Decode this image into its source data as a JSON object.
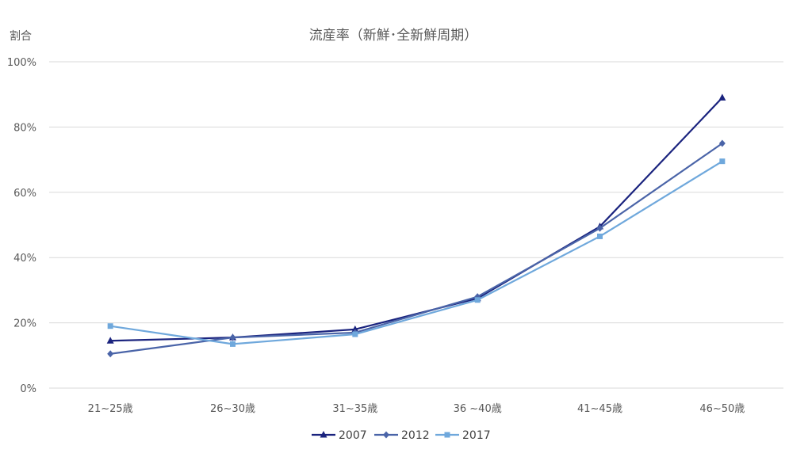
{
  "chart_data": {
    "type": "line",
    "title": "流産率（新鮮･全新鮮周期）",
    "ylabel": "割合",
    "xlabel": "",
    "ylim": [
      0,
      100
    ],
    "yticks": [
      "0%",
      "20%",
      "40%",
      "60%",
      "80%",
      "100%"
    ],
    "categories": [
      "21~25歳",
      "26~30歳",
      "31~35歳",
      "36 ~40歳",
      "41~45歳",
      "46~50歳"
    ],
    "grid": true,
    "legend_position": "bottom",
    "series": [
      {
        "name": "2007",
        "color": "#1a237e",
        "marker": "triangle",
        "values": [
          14.5,
          15.5,
          18.0,
          27.5,
          49.5,
          89.0
        ]
      },
      {
        "name": "2012",
        "color": "#4a64a8",
        "marker": "diamond",
        "values": [
          10.5,
          15.5,
          17.0,
          28.0,
          49.0,
          75.0
        ]
      },
      {
        "name": "2017",
        "color": "#6fa8dc",
        "marker": "square",
        "values": [
          19.0,
          13.5,
          16.5,
          27.0,
          46.5,
          69.5
        ]
      }
    ]
  }
}
